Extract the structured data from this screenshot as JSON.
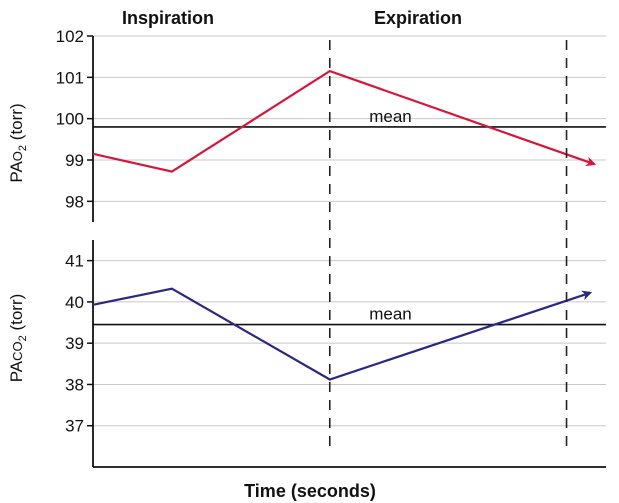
{
  "chart_data": {
    "type": "line",
    "xlabel": "Time (seconds)",
    "phases": [
      {
        "label": "Inspiration"
      },
      {
        "label": "Expiration"
      }
    ],
    "colors": {
      "po2": "#d6163c",
      "pco2": "#2b2882",
      "grid": "#c8c8c8",
      "axis": "#111111",
      "mean": "#111111",
      "phase_divider": "#222222"
    },
    "panels": [
      {
        "id": "po2",
        "ylabel_main": "PA",
        "ylabel_gas": "O",
        "ylabel_sub": "2",
        "ylabel_unit": " (torr)",
        "ylim": [
          97.5,
          102
        ],
        "yticks": [
          98,
          99,
          100,
          101,
          102
        ],
        "grid": true,
        "mean": {
          "value": 99.8,
          "label": "mean"
        },
        "series": [
          {
            "x": [
              0,
              1,
              3,
              6.35
            ],
            "y": [
              99.15,
              98.72,
              101.15,
              98.9
            ],
            "arrow": true
          }
        ]
      },
      {
        "id": "pco2",
        "ylabel_main": "PA",
        "ylabel_gas": "CO",
        "ylabel_sub": "2",
        "ylabel_unit": " (torr)",
        "ylim": [
          36,
          41.5
        ],
        "yticks": [
          37,
          38,
          39,
          40,
          41
        ],
        "grid": true,
        "mean": {
          "value": 39.45,
          "label": "mean"
        },
        "series": [
          {
            "x": [
              0,
              1,
              3,
              6.3
            ],
            "y": [
              39.93,
              40.32,
              38.12,
              40.22
            ],
            "arrow": true
          }
        ]
      }
    ],
    "xlim": [
      0,
      6.5
    ],
    "phase_boundaries": [
      3,
      6
    ]
  }
}
